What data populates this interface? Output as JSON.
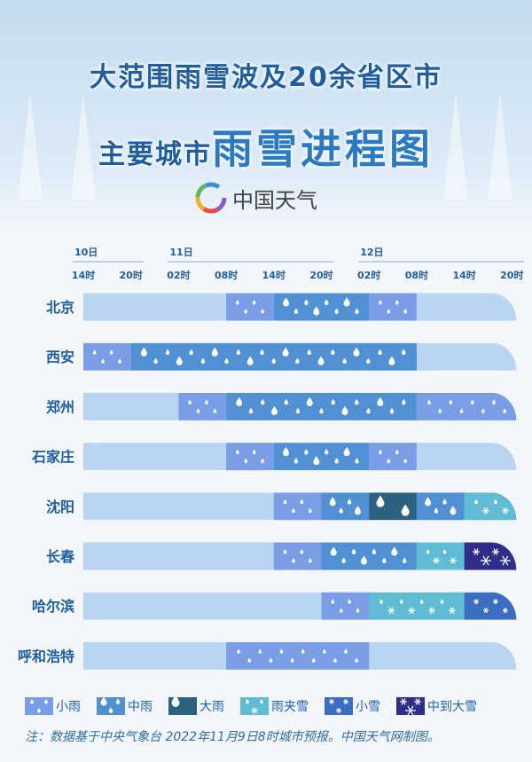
{
  "header": {
    "title_line1": "大范围雨雪波及20余省区市",
    "title_line2_prefix": "主要城市",
    "title_line2_main": "雨雪进程图",
    "logo_text": "中国天气"
  },
  "colors": {
    "empty": "#b9d5f1",
    "light_rain": "#7a9ee6",
    "moderate_rain": "#5290d4",
    "heavy_rain": "#2c6180",
    "sleet": "#5fbcd2",
    "light_snow": "#3b6ec0",
    "mod_heavy_snow": "#2e2e8a",
    "text": "#1f5d9e"
  },
  "chart_data": {
    "type": "timeline",
    "days": [
      {
        "label": "10日",
        "start": 0,
        "end": 1
      },
      {
        "label": "11日",
        "start": 2,
        "end": 5
      },
      {
        "label": "12日",
        "start": 6,
        "end": 9
      }
    ],
    "time_ticks": [
      "14时",
      "20时",
      "02时",
      "08时",
      "14时",
      "20时",
      "02时",
      "08时",
      "14时",
      "20时"
    ],
    "rows": [
      {
        "city": "北京",
        "segments": [
          {
            "from": 3,
            "to": 4,
            "type": "light_rain"
          },
          {
            "from": 4,
            "to": 6,
            "type": "moderate_rain"
          },
          {
            "from": 6,
            "to": 7,
            "type": "light_rain"
          }
        ]
      },
      {
        "city": "西安",
        "segments": [
          {
            "from": 0,
            "to": 1,
            "type": "light_rain"
          },
          {
            "from": 1,
            "to": 7,
            "type": "moderate_rain"
          }
        ]
      },
      {
        "city": "郑州",
        "segments": [
          {
            "from": 2,
            "to": 3,
            "type": "light_rain"
          },
          {
            "from": 3,
            "to": 7,
            "type": "moderate_rain"
          },
          {
            "from": 7,
            "to": 9,
            "type": "light_rain"
          }
        ]
      },
      {
        "city": "石家庄",
        "segments": [
          {
            "from": 3,
            "to": 4,
            "type": "light_rain"
          },
          {
            "from": 4,
            "to": 6,
            "type": "moderate_rain"
          },
          {
            "from": 6,
            "to": 7,
            "type": "light_rain"
          }
        ]
      },
      {
        "city": "沈阳",
        "segments": [
          {
            "from": 4,
            "to": 5,
            "type": "light_rain"
          },
          {
            "from": 5,
            "to": 6,
            "type": "moderate_rain"
          },
          {
            "from": 6,
            "to": 7,
            "type": "heavy_rain"
          },
          {
            "from": 7,
            "to": 8,
            "type": "moderate_rain"
          },
          {
            "from": 8,
            "to": 9,
            "type": "sleet"
          }
        ]
      },
      {
        "city": "长春",
        "segments": [
          {
            "from": 4,
            "to": 5,
            "type": "light_rain"
          },
          {
            "from": 5,
            "to": 7,
            "type": "moderate_rain"
          },
          {
            "from": 7,
            "to": 8,
            "type": "sleet"
          },
          {
            "from": 8,
            "to": 9,
            "type": "mod_heavy_snow"
          }
        ]
      },
      {
        "city": "哈尔滨",
        "segments": [
          {
            "from": 5,
            "to": 6,
            "type": "light_rain"
          },
          {
            "from": 6,
            "to": 8,
            "type": "sleet"
          },
          {
            "from": 8,
            "to": 9,
            "type": "light_snow"
          }
        ]
      },
      {
        "city": "呼和浩特",
        "segments": [
          {
            "from": 3,
            "to": 6,
            "type": "light_rain"
          }
        ]
      }
    ],
    "legend": [
      {
        "type": "light_rain",
        "label": "小雨"
      },
      {
        "type": "moderate_rain",
        "label": "中雨"
      },
      {
        "type": "heavy_rain",
        "label": "大雨"
      },
      {
        "type": "sleet",
        "label": "雨夹雪"
      },
      {
        "type": "light_snow",
        "label": "小雪"
      },
      {
        "type": "mod_heavy_snow",
        "label": "中到大雪"
      }
    ]
  },
  "footer": {
    "note": "注：数据基于中央气象台 2022年11月9日8时城市预报。中国天气网制图。"
  }
}
